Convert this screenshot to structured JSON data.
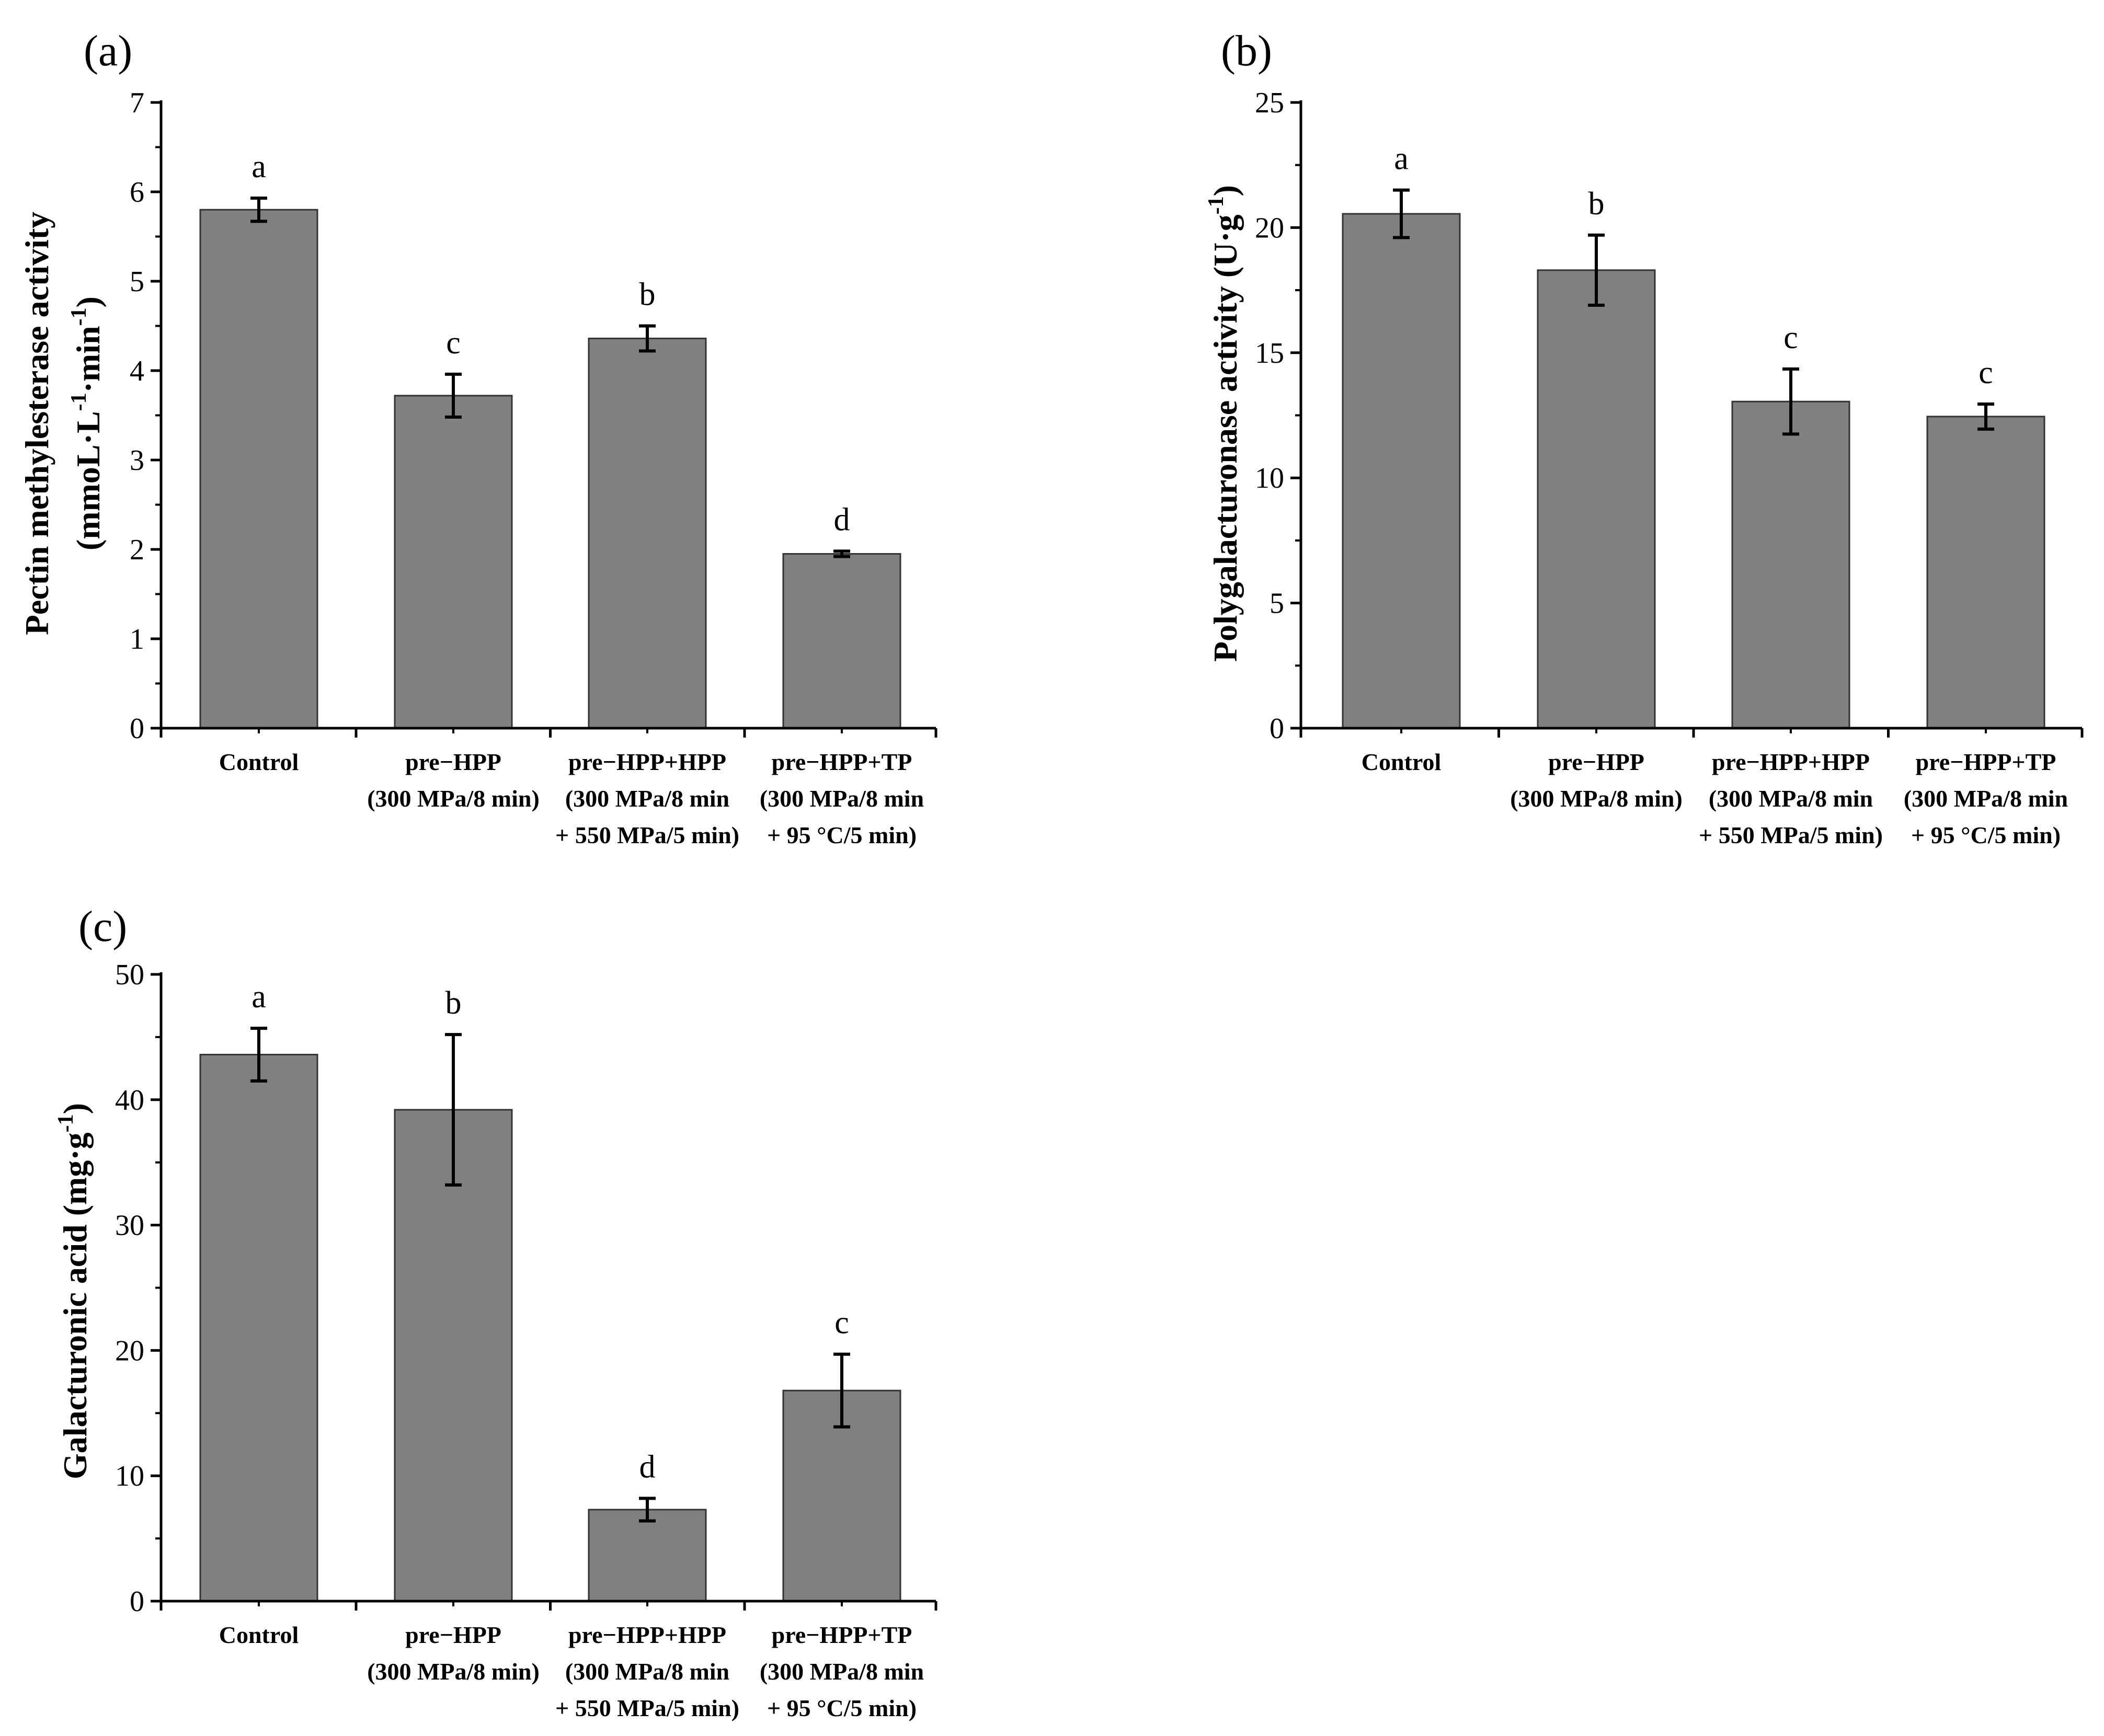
{
  "colors": {
    "bar": "#808080",
    "axis": "#000000",
    "background": "#ffffff"
  },
  "chart_data": [
    {
      "type": "bar",
      "panel": "(a)",
      "ylabel_lines": [
        "Pectin methylesterase activity",
        "(mmoL·L",
        "-1",
        "·min",
        "-1",
        ")"
      ],
      "ylim": [
        0,
        7
      ],
      "yticks": [
        0,
        1,
        2,
        3,
        4,
        5,
        6,
        7
      ],
      "ytick_labels": [
        "0",
        "1",
        "2",
        "3",
        "4",
        "5",
        "6",
        "7"
      ],
      "categories": [
        [
          "Control"
        ],
        [
          "pre−HPP",
          "(300 MPa/8 min)"
        ],
        [
          "pre−HPP+HPP",
          "(300 MPa/8 min",
          "+ 550 MPa/5 min)"
        ],
        [
          "pre−HPP+TP",
          "(300 MPa/8 min",
          "+ 95 °C/5 min)"
        ]
      ],
      "values": [
        5.8,
        3.72,
        4.36,
        1.95
      ],
      "errors": [
        0.13,
        0.24,
        0.14,
        0.03
      ],
      "significance": [
        "a",
        "c",
        "b",
        "d"
      ]
    },
    {
      "type": "bar",
      "panel": "(b)",
      "ylabel_lines": [
        "Polygalacturonase activity (U·g",
        "-1",
        ")"
      ],
      "ylim": [
        0,
        25
      ],
      "yticks": [
        0,
        5,
        10,
        15,
        20,
        25
      ],
      "ytick_labels": [
        "0",
        "5",
        "10",
        "15",
        "20",
        "25"
      ],
      "categories": [
        [
          "Control"
        ],
        [
          "pre−HPP",
          "(300 MPa/8 min)"
        ],
        [
          "pre−HPP+HPP",
          "(300 MPa/8 min",
          "+ 550 MPa/5 min)"
        ],
        [
          "pre−HPP+TP",
          "(300 MPa/8 min",
          "+ 95 °C/5 min)"
        ]
      ],
      "values": [
        20.55,
        18.3,
        13.05,
        12.45
      ],
      "errors": [
        0.95,
        1.4,
        1.3,
        0.5
      ],
      "significance": [
        "a",
        "b",
        "c",
        "c"
      ]
    },
    {
      "type": "bar",
      "panel": "(c)",
      "ylabel_lines": [
        "Galacturonic acid (mg·g",
        "-1",
        ")"
      ],
      "ylim": [
        0,
        50
      ],
      "yticks": [
        0,
        10,
        20,
        30,
        40,
        50
      ],
      "ytick_labels": [
        "0",
        "10",
        "20",
        "30",
        "40",
        "50"
      ],
      "categories": [
        [
          "Control"
        ],
        [
          "pre−HPP",
          "(300 MPa/8 min)"
        ],
        [
          "pre−HPP+HPP",
          "(300 MPa/8 min",
          "+ 550 MPa/5 min)"
        ],
        [
          "pre−HPP+TP",
          "(300 MPa/8 min",
          "+ 95 °C/5 min)"
        ]
      ],
      "values": [
        43.6,
        39.2,
        7.3,
        16.8
      ],
      "errors": [
        2.1,
        6.0,
        0.9,
        2.9
      ],
      "significance": [
        "a",
        "b",
        "d",
        "c"
      ]
    }
  ]
}
